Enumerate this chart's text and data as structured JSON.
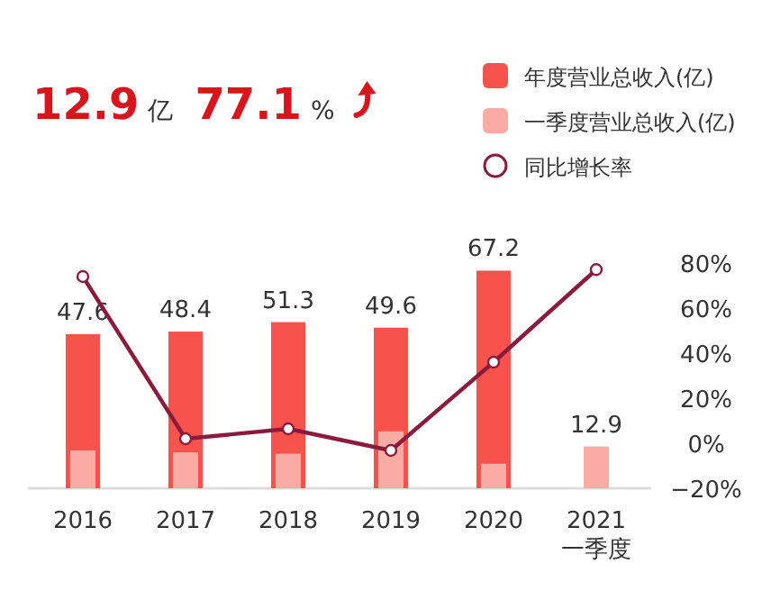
{
  "chart_data": {
    "type": "bar",
    "annotations": [
      "12.9",
      "亿",
      "77.1",
      "%"
    ],
    "categories": [
      "2016",
      "2017",
      "2018",
      "2019",
      "2020",
      "2021\n一季度"
    ],
    "series": [
      {
        "name": "年度营业总收入(亿)",
        "color": "#f7524c",
        "values": [
          47.6,
          48.4,
          51.3,
          49.6,
          67.2,
          null
        ],
        "value_labels": [
          "47.6",
          "48.4",
          "51.3",
          "49.6",
          "67.2",
          null
        ]
      },
      {
        "name": "一季度营业总收入(亿)",
        "color": "#f9aba4",
        "values": [
          11.7,
          11.1,
          10.7,
          17.6,
          7.6,
          12.9
        ],
        "value_labels": [
          null,
          null,
          null,
          null,
          null,
          "12.9"
        ]
      },
      {
        "name": "同比增长率",
        "type": "line",
        "axis": "y2",
        "color": "#8c1a3c",
        "marker": "circle",
        "values": [
          74,
          2,
          6.4,
          -3.2,
          36,
          77.1
        ]
      }
    ],
    "y2lim": [
      -20,
      80
    ],
    "y2ticks": [
      {
        "value": -20,
        "label": "−20%"
      },
      {
        "value": 0,
        "label": "0%"
      },
      {
        "value": 20,
        "label": "20%"
      },
      {
        "value": 40,
        "label": "40%"
      },
      {
        "value": 60,
        "label": "60%"
      },
      {
        "value": 80,
        "label": "80%"
      }
    ],
    "tick_labels": [
      "x",
      "y2"
    ],
    "legend": "top right",
    "grid": false
  }
}
